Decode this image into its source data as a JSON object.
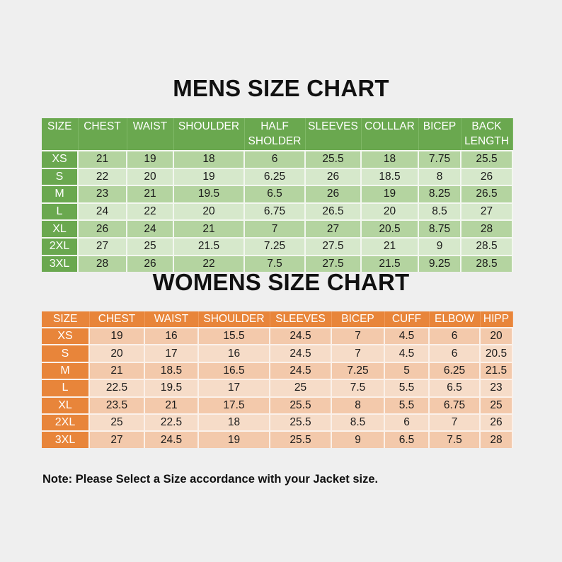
{
  "mens": {
    "title": "MENS SIZE CHART",
    "headers": [
      "SIZE",
      "CHEST",
      "WAIST",
      "SHOULDER",
      "HALF SHOLDER",
      "SLEEVES",
      "COLLLAR",
      "BICEP",
      "BACK LENGTH"
    ],
    "rows": [
      [
        "XS",
        "21",
        "19",
        "18",
        "6",
        "25.5",
        "18",
        "7.75",
        "25.5"
      ],
      [
        "S",
        "22",
        "20",
        "19",
        "6.25",
        "26",
        "18.5",
        "8",
        "26"
      ],
      [
        "M",
        "23",
        "21",
        "19.5",
        "6.5",
        "26",
        "19",
        "8.25",
        "26.5"
      ],
      [
        "L",
        "24",
        "22",
        "20",
        "6.75",
        "26.5",
        "20",
        "8.5",
        "27"
      ],
      [
        "XL",
        "26",
        "24",
        "21",
        "7",
        "27",
        "20.5",
        "8.75",
        "28"
      ],
      [
        "2XL",
        "27",
        "25",
        "21.5",
        "7.25",
        "27.5",
        "21",
        "9",
        "28.5"
      ],
      [
        "3XL",
        "28",
        "26",
        "22",
        "7.5",
        "27.5",
        "21.5",
        "9.25",
        "28.5"
      ]
    ]
  },
  "womens": {
    "title": "WOMENS SIZE CHART",
    "headers": [
      "SIZE",
      "CHEST",
      "WAIST",
      "SHOULDER",
      "SLEEVES",
      "BICEP",
      "CUFF",
      "ELBOW",
      "HIPP"
    ],
    "rows": [
      [
        "XS",
        "19",
        "16",
        "15.5",
        "24.5",
        "7",
        "4.5",
        "6",
        "20"
      ],
      [
        "S",
        "20",
        "17",
        "16",
        "24.5",
        "7",
        "4.5",
        "6",
        "20.5"
      ],
      [
        "M",
        "21",
        "18.5",
        "16.5",
        "24.5",
        "7.25",
        "5",
        "6.25",
        "21.5"
      ],
      [
        "L",
        "22.5",
        "19.5",
        "17",
        "25",
        "7.5",
        "5.5",
        "6.5",
        "23"
      ],
      [
        "XL",
        "23.5",
        "21",
        "17.5",
        "25.5",
        "8",
        "5.5",
        "6.75",
        "25"
      ],
      [
        "2XL",
        "25",
        "22.5",
        "18",
        "25.5",
        "8.5",
        "6",
        "7",
        "26"
      ],
      [
        "3XL",
        "27",
        "24.5",
        "19",
        "25.5",
        "9",
        "6.5",
        "7.5",
        "28"
      ]
    ]
  },
  "note": "Note: Please Select a Size accordance with your Jacket size.",
  "colors": {
    "mens_header": "#6aa84f",
    "mens_row_dark": "#b4d4a0",
    "mens_row_light": "#d6e8cb",
    "womens_header": "#e8853a",
    "womens_row_dark": "#f3c9ab",
    "womens_row_light": "#f6dcc8",
    "background": "#efefef"
  }
}
